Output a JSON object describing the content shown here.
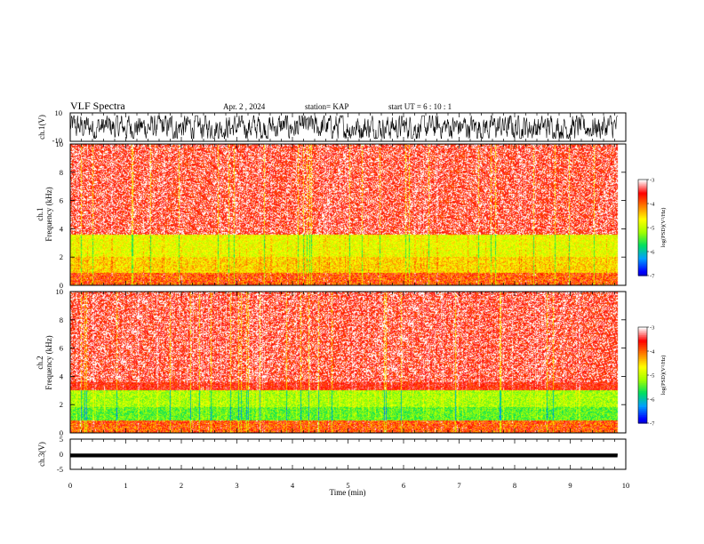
{
  "header": {
    "title": "VLF Spectra",
    "date": "Apr. 2  , 2024",
    "station": "station= KAP",
    "start": "start  UT  =   6  : 10 : 1"
  },
  "colors": {
    "background": "#ffffff",
    "spectrogram_dominant": "#ff2a1a",
    "colormap": [
      "#000080",
      "#0000ff",
      "#00a0ff",
      "#00e060",
      "#a0ff00",
      "#ffff00",
      "#ff8000",
      "#ff0000",
      "#ffffff"
    ]
  },
  "chart_data": [
    {
      "type": "line",
      "panel": "ch1",
      "ylabel": "ch.1(V)",
      "ylim": [
        -10,
        10
      ],
      "yticks": [
        "10",
        "-10"
      ],
      "xlim": [
        0,
        10
      ],
      "description_values": {
        "x_end": 9.85,
        "amplitude_range": [
          -8,
          8
        ]
      }
    },
    {
      "type": "heatmap",
      "panel": "ch1_spectrogram",
      "ylabel": "ch.1\nFrequency  (kHz)",
      "ylim": [
        0,
        10
      ],
      "yticks": [
        "0",
        "2",
        "4",
        "6",
        "8",
        "10"
      ],
      "xlim": [
        0,
        10
      ],
      "x_end": 9.85,
      "bands": [
        {
          "from": 0,
          "to": 0.9,
          "level": "white-red"
        },
        {
          "from": 0.9,
          "to": 2.0,
          "level": "orange-yellow"
        },
        {
          "from": 2.0,
          "to": 3.6,
          "level": "yellow-green"
        },
        {
          "from": 3.6,
          "to": 10,
          "level": "red-white"
        }
      ],
      "colorbar": {
        "label": "log(PSD)(V²/Hz)",
        "range": [
          -7,
          -3
        ],
        "ticks": [
          "-3",
          "-4",
          "-5",
          "-6",
          "-7"
        ]
      }
    },
    {
      "type": "heatmap",
      "panel": "ch2_spectrogram",
      "ylabel": "ch.2\nFrequency  (kHz)",
      "ylim": [
        0,
        10
      ],
      "yticks": [
        "0",
        "2",
        "4",
        "6",
        "8",
        "10"
      ],
      "xlim": [
        0,
        10
      ],
      "x_end": 9.85,
      "bands": [
        {
          "from": 0,
          "to": 0.9,
          "level": "white-red"
        },
        {
          "from": 0.9,
          "to": 1.8,
          "level": "green-cyan"
        },
        {
          "from": 1.8,
          "to": 3.0,
          "level": "green-yellow"
        },
        {
          "from": 3.0,
          "to": 10,
          "level": "red-white"
        }
      ],
      "colorbar": {
        "label": "log(PSD)(V²/Hz)",
        "range": [
          -7,
          -3
        ],
        "ticks": [
          "-3",
          "-4",
          "-5",
          "-6",
          "-7"
        ]
      }
    },
    {
      "type": "line",
      "panel": "ch3",
      "ylabel": "ch.3(V)",
      "ylim": [
        -5,
        5
      ],
      "yticks": [
        "5",
        "0",
        "-5"
      ],
      "xlim": [
        0,
        10
      ],
      "xlabel": "Time  (min)",
      "xticks": [
        "0",
        "1",
        "2",
        "3",
        "4",
        "5",
        "6",
        "7",
        "8",
        "9",
        "10"
      ],
      "description_values": {
        "x_end": 9.85,
        "amplitude_range": [
          -1.0,
          0.2
        ]
      }
    }
  ]
}
